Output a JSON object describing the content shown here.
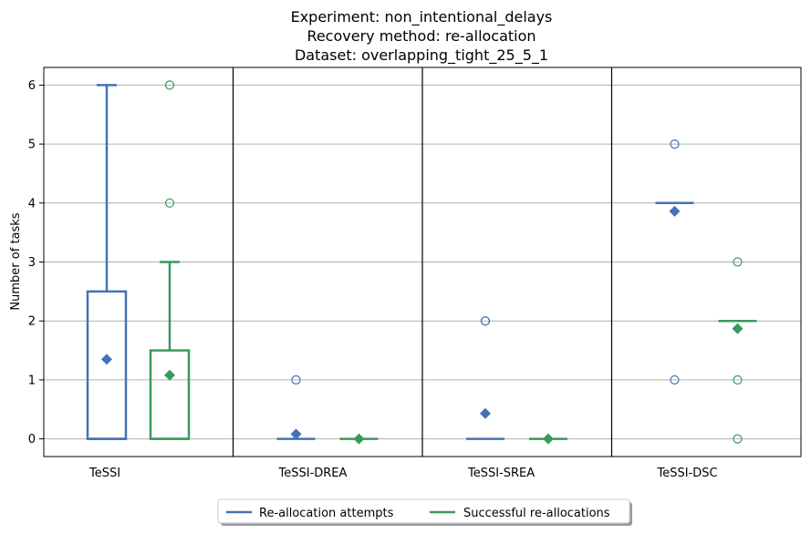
{
  "chart_data": {
    "type": "box",
    "title_lines": [
      "Experiment: non_intentional_delays",
      "Recovery method: re-allocation",
      "Dataset: overlapping_tight_25_5_1"
    ],
    "ylabel": "Number of tasks",
    "xlabel": "",
    "ylim": [
      -0.3,
      6.3
    ],
    "yticks": [
      0,
      1,
      2,
      3,
      4,
      5,
      6
    ],
    "grid": "horizontal",
    "categories": [
      "TeSSI",
      "TeSSI-DREA",
      "TeSSI-SREA",
      "TeSSI-DSC"
    ],
    "series": [
      {
        "name": "Re-allocation attempts",
        "color": "#4472b8",
        "boxes": [
          {
            "q1": 0,
            "median": 0,
            "q3": 2.5,
            "whisker_low": 0,
            "whisker_high": 6,
            "mean": 1.35,
            "outliers": []
          },
          {
            "q1": 0,
            "median": 0,
            "q3": 0,
            "whisker_low": 0,
            "whisker_high": 0,
            "mean": 0.08,
            "outliers": [
              1
            ]
          },
          {
            "q1": 0,
            "median": 0,
            "q3": 0,
            "whisker_low": 0,
            "whisker_high": 0,
            "mean": 0.43,
            "outliers": [
              2,
              2
            ]
          },
          {
            "q1": 4,
            "median": 4,
            "q3": 4,
            "whisker_low": 4,
            "whisker_high": 4,
            "mean": 3.86,
            "outliers": [
              5,
              1
            ]
          }
        ]
      },
      {
        "name": "Successful re-allocations",
        "color": "#3a9a5c",
        "boxes": [
          {
            "q1": 0,
            "median": 0,
            "q3": 1.5,
            "whisker_low": 0,
            "whisker_high": 3,
            "mean": 1.08,
            "outliers": [
              6,
              4
            ]
          },
          {
            "q1": 0,
            "median": 0,
            "q3": 0,
            "whisker_low": 0,
            "whisker_high": 0,
            "mean": 0,
            "outliers": []
          },
          {
            "q1": 0,
            "median": 0,
            "q3": 0,
            "whisker_low": 0,
            "whisker_high": 0,
            "mean": 0,
            "outliers": []
          },
          {
            "q1": 2,
            "median": 2,
            "q3": 2,
            "whisker_low": 2,
            "whisker_high": 2,
            "mean": 1.87,
            "outliers": [
              3,
              1,
              0
            ]
          }
        ]
      }
    ],
    "legend": {
      "position": "bottom-center",
      "entries": [
        "Re-allocation attempts",
        "Successful re-allocations"
      ]
    }
  }
}
